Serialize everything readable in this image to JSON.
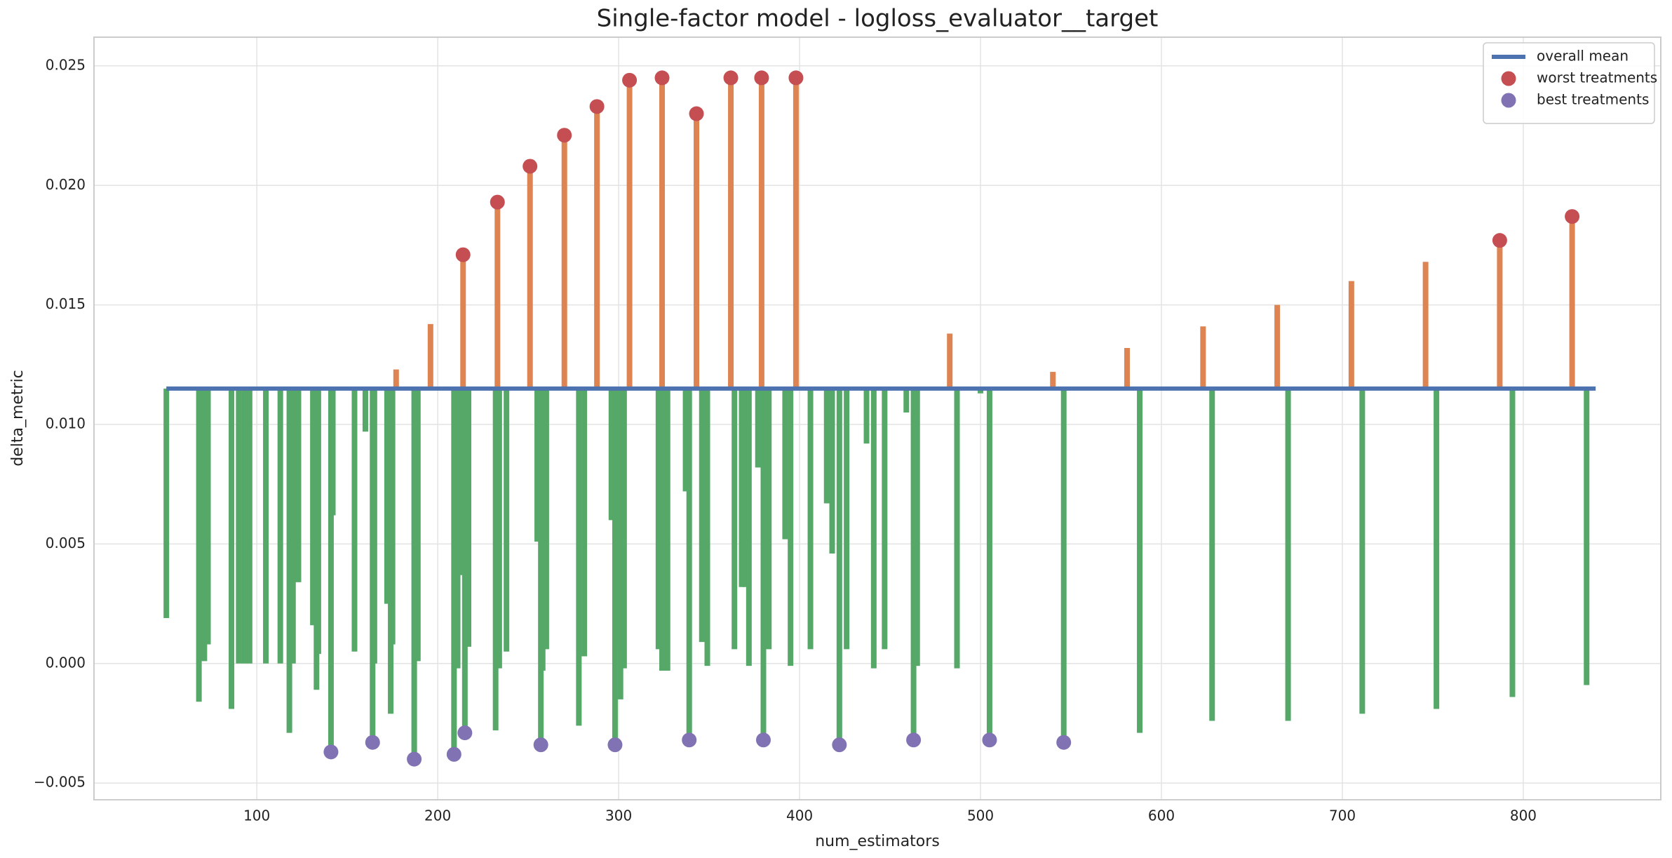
{
  "chart_data": {
    "type": "stem",
    "title": "Single-factor model - logloss_evaluator__target",
    "xlabel": "num_estimators",
    "ylabel": "delta_metric",
    "xlim": [
      10,
      876
    ],
    "ylim": [
      -0.0057,
      0.0262
    ],
    "xticks": [
      100,
      200,
      300,
      400,
      500,
      600,
      700,
      800
    ],
    "yticks": [
      {
        "value": -0.005,
        "label": "−0.005"
      },
      {
        "value": 0,
        "label": "0.000"
      },
      {
        "value": 0.005,
        "label": "0.005"
      },
      {
        "value": 0.01,
        "label": "0.010"
      },
      {
        "value": 0.015,
        "label": "0.015"
      },
      {
        "value": 0.02,
        "label": "0.020"
      },
      {
        "value": 0.025,
        "label": "0.025"
      }
    ],
    "grid": true,
    "legend": "upper right",
    "stems": {
      "above_color": "#dd8452",
      "below_color": "#55a868",
      "x": [
        50,
        68,
        69,
        71,
        73,
        86,
        90,
        93,
        96,
        105,
        113,
        118,
        120,
        123,
        131,
        133,
        134,
        141,
        142,
        154,
        160,
        164,
        165,
        172,
        174,
        175,
        177,
        187,
        189,
        196,
        209,
        211,
        213,
        214,
        215,
        217,
        232,
        233,
        234,
        238,
        251,
        255,
        257,
        258,
        260,
        270,
        278,
        281,
        288,
        296,
        298,
        299,
        301,
        303,
        306,
        322,
        324,
        324,
        327,
        337,
        339,
        343,
        346,
        349,
        362,
        364,
        368,
        370,
        372,
        377,
        379,
        380,
        383,
        392,
        395,
        398,
        406,
        415,
        418,
        422,
        426,
        437,
        441,
        447,
        459,
        463,
        465,
        483,
        487,
        500,
        505,
        540,
        546,
        581,
        588,
        623,
        628,
        664,
        670,
        705,
        711,
        746,
        752,
        787,
        794,
        827,
        835
      ],
      "values": [
        0.0019,
        -0.0016,
        0.0036,
        0.0001,
        0.0008,
        -0.0019,
        0,
        0,
        0,
        0,
        0,
        -0.0029,
        0,
        0.0034,
        0.0016,
        -0.0011,
        0.0004,
        -0.0037,
        0.0062,
        0.0005,
        0.0097,
        -0.0033,
        0,
        0.0025,
        -0.0021,
        0.0008,
        0.0123,
        -0.004,
        0.0001,
        0.0142,
        -0.0038,
        -0.0002,
        0.0037,
        0.0171,
        -0.0029,
        0.0007,
        -0.0028,
        0.0193,
        -0.0002,
        0.0005,
        0.0208,
        0.0051,
        -0.0034,
        -0.0003,
        0.0006,
        0.0221,
        -0.0026,
        0.0003,
        0.0233,
        0.006,
        -0.0034,
        0.0007,
        -0.0015,
        -0.0002,
        0.0244,
        0.0006,
        0.0245,
        -0.0003,
        -0.0003,
        0.0072,
        -0.0032,
        0.023,
        0.0009,
        -0.0001,
        0.0245,
        0.0006,
        0.0032,
        0.0032,
        -0.0001,
        0.0082,
        0.0245,
        -0.0032,
        0.0006,
        0.0052,
        -0.0001,
        0.0245,
        0.0006,
        0.0067,
        0.0046,
        -0.0034,
        0.0006,
        0.0092,
        -0.0002,
        0.0006,
        0.0105,
        -0.0032,
        -0.0001,
        0.0138,
        -0.0002,
        0.0113,
        -0.0032,
        0.0122,
        -0.0033,
        0.0132,
        -0.0029,
        0.0141,
        -0.0024,
        0.015,
        -0.0024,
        0.016,
        -0.0021,
        0.0168,
        -0.0019,
        0.0177,
        -0.0014,
        0.0187,
        -0.0009
      ]
    },
    "series": [
      {
        "name": "overall mean",
        "type": "line",
        "color": "#4c72b0",
        "x": [
          50,
          840
        ],
        "values": [
          0.0115,
          0.0115
        ]
      },
      {
        "name": "worst treatments",
        "type": "scatter",
        "color": "#c44e52",
        "x": [
          214,
          233,
          251,
          270,
          288,
          306,
          324,
          343,
          362,
          379,
          398,
          787,
          827
        ],
        "values": [
          0.0171,
          0.0193,
          0.0208,
          0.0221,
          0.0233,
          0.0244,
          0.0245,
          0.023,
          0.0245,
          0.0245,
          0.0245,
          0.0177,
          0.0187
        ]
      },
      {
        "name": "best treatments",
        "type": "scatter",
        "color": "#8172b3",
        "x": [
          141,
          164,
          187,
          209,
          215,
          257,
          298,
          339,
          380,
          422,
          463,
          505,
          546
        ],
        "values": [
          -0.0037,
          -0.0033,
          -0.004,
          -0.0038,
          -0.0029,
          -0.0034,
          -0.0034,
          -0.0032,
          -0.0032,
          -0.0034,
          -0.0032,
          -0.0032,
          -0.0033
        ]
      }
    ]
  }
}
